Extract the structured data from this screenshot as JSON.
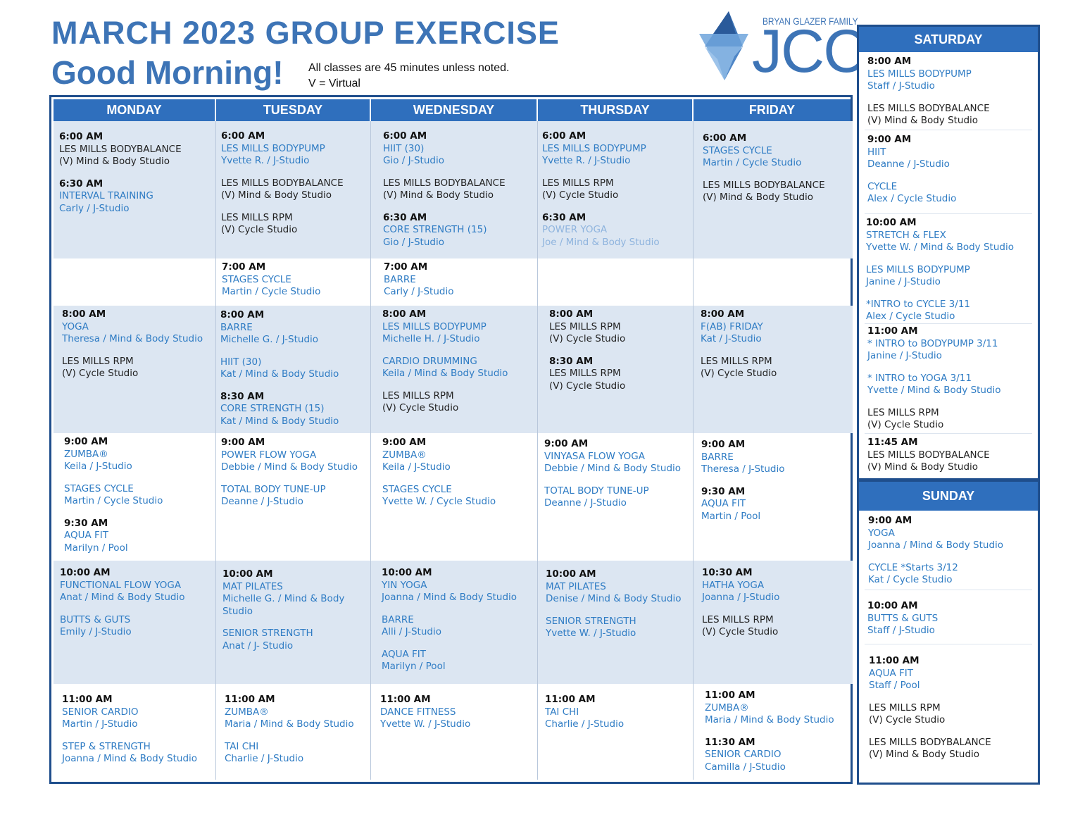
{
  "header": {
    "title": "MARCH  2023 GROUP  EXERCISE",
    "subtitle": "Good Morning!",
    "note_line1": "All classes are 45 minutes unless noted.",
    "note_line2": "V = Virtual"
  },
  "logo": {
    "family": "BRYAN GLAZER FAMILY",
    "name": "JCC"
  },
  "days": {
    "monday": "MONDAY",
    "tuesday": "TUESDAY",
    "wednesday": "WEDNESDAY",
    "thursday": "THURSDAY",
    "friday": "FRIDAY",
    "saturday": "SATURDAY",
    "sunday": "SUNDAY"
  },
  "monday": {
    "r1": [
      "6:00 AM",
      "LES MILLS BODYBALANCE",
      "(V) Mind & Body Studio",
      "6:30 AM",
      "INTERVAL TRAINING",
      "Carly / J-Studio"
    ],
    "r3": [
      "8:00 AM",
      "YOGA",
      "Theresa / Mind & Body Studio",
      "LES MILLS RPM",
      "(V)  Cycle Studio"
    ],
    "r4": [
      "9:00 AM",
      "ZUMBA®",
      "Keila / J-Studio",
      "STAGES CYCLE",
      "Martin / Cycle Studio",
      "9:30 AM",
      "AQUA FIT",
      "Marilyn / Pool"
    ],
    "r5": [
      "10:00 AM",
      "FUNCTIONAL  FLOW YOGA",
      "Anat / Mind & Body Studio",
      "BUTTS & GUTS",
      "Emily / J-Studio"
    ],
    "r6": [
      "11:00 AM",
      "SENIOR CARDIO",
      "Martin / J-Studio",
      "STEP & STRENGTH",
      "Joanna / Mind & Body Studio"
    ]
  },
  "tuesday": {
    "r1": [
      "6:00 AM",
      "LES MILLS BODYPUMP",
      "Yvette R. / J-Studio",
      "LES MILLS BODYBALANCE",
      "(V) Mind & Body Studio",
      "LES MILLS RPM",
      "(V) Cycle Studio"
    ],
    "r2": [
      "7:00 AM",
      "STAGES  CYCLE",
      "Martin / Cycle Studio"
    ],
    "r3": [
      "8:00 AM",
      "BARRE",
      "Michelle G. / J-Studio",
      "HIIT (30)",
      "Kat / Mind & Body Studio",
      "8:30 AM",
      "CORE STRENGTH (15)",
      "Kat / Mind & Body Studio"
    ],
    "r4": [
      "9:00 AM",
      "POWER FLOW YOGA",
      "Debbie / Mind & Body Studio",
      "TOTAL BODY TUNE-UP",
      "Deanne / J-Studio"
    ],
    "r5": [
      "10:00 AM",
      "MAT PILATES",
      "Michelle G. / Mind & Body",
      "Studio",
      "SENIOR STRENGTH",
      "Anat /  J- Studio"
    ],
    "r6": [
      "11:00 AM",
      "ZUMBA®",
      "Maria / Mind & Body Studio",
      "TAI CHI",
      "Charlie / J-Studio"
    ]
  },
  "wednesday": {
    "r1": [
      "6:00 AM",
      "HIIT (30)",
      "Gio / J-Studio",
      "LES MILLS BODYBALANCE",
      "(V) Mind & Body Studio",
      "6:30 AM",
      "CORE STRENGTH (15)",
      "Gio / J-Studio"
    ],
    "r2": [
      "7:00 AM",
      "BARRE",
      "Carly / J-Studio"
    ],
    "r3": [
      "8:00 AM",
      "LES MILLS BODYPUMP",
      "Michelle H. / J-Studio",
      "CARDIO DRUMMING",
      "Keila / Mind & Body Studio",
      "LES MILLS RPM",
      "(V) Cycle Studio"
    ],
    "r4": [
      "9:00 AM",
      "ZUMBA®",
      "Keila / J-Studio",
      "STAGES CYCLE",
      "Yvette W. / Cycle Studio"
    ],
    "r5": [
      "10:00 AM",
      "YIN YOGA",
      "Joanna / Mind & Body Studio",
      "BARRE",
      "Alli / J-Studio",
      "AQUA FIT",
      "Marilyn / Pool"
    ],
    "r6": [
      "11:00 AM",
      "DANCE FITNESS",
      "Yvette W. / J-Studio"
    ]
  },
  "thursday": {
    "r1": [
      "6:00 AM",
      "LES MILLS BODYPUMP",
      "Yvette R. / J-Studio",
      "LES MILLS RPM",
      "(V) Cycle Studio",
      "6:30 AM",
      "POWER YOGA",
      "Joe / Mind & Body Studio"
    ],
    "r3": [
      "8:00 AM",
      "LES MILLS RPM",
      "(V) Cycle Studio",
      "8:30 AM",
      "LES MILLS RPM",
      "(V) Cycle Studio"
    ],
    "r4": [
      "9:00 AM",
      "VINYASA  FLOW YOGA",
      "Debbie / Mind & Body Studio",
      "TOTAL  BODY TUNE-UP",
      "Deanne / J-Studio"
    ],
    "r5": [
      "10:00 AM",
      "MAT PILATES",
      "Denise / Mind & Body Studio",
      "SENIOR STRENGTH",
      "Yvette W. / J-Studio"
    ],
    "r6": [
      "11:00 AM",
      "TAI CHI",
      "Charlie / J-Studio"
    ]
  },
  "friday": {
    "r1": [
      "6:00 AM",
      "STAGES CYCLE",
      "Martin / Cycle Studio",
      "LES MILLS BODYBALANCE",
      "(V) Mind & Body Studio"
    ],
    "r3": [
      "8:00 AM",
      "F(AB) FRIDAY",
      "Kat / J-Studio",
      "LES MILLS RPM",
      "(V) Cycle Studio"
    ],
    "r4": [
      "9:00 AM",
      "BARRE",
      "Theresa / J-Studio",
      "9:30 AM",
      "AQUA FIT",
      "Martin / Pool"
    ],
    "r5": [
      "10:30 AM",
      "HATHA YOGA",
      "Joanna / J-Studio",
      "LES MILLS RPM",
      "(V) Cycle Studio"
    ],
    "r6": [
      "11:00 AM",
      "ZUMBA®",
      "Maria / Mind & Body Studio",
      "11:30 AM",
      "SENIOR CARDIO",
      "Camilla / J-Studio"
    ]
  },
  "saturday": {
    "s1": [
      "8:00 AM",
      "LES MILLS BODYPUMP",
      "Staff / J-Studio",
      "LES MILLS BODYBALANCE",
      "(V) Mind & Body Studio"
    ],
    "s2": [
      "9:00 AM",
      "HIIT",
      "Deanne / J-Studio",
      "CYCLE",
      "Alex / Cycle Studio"
    ],
    "s3": [
      "10:00 AM",
      "STRETCH  & FLEX",
      "Yvette W. / Mind & Body Studio",
      "LES MILLS BODYPUMP",
      "Janine / J-Studio",
      "*INTRO to CYCLE 3/11",
      "Alex / Cycle Studio"
    ],
    "s4": [
      "11:00 AM",
      "* INTRO to BODYPUMP 3/11",
      "Janine / J-Studio",
      "* INTRO to YOGA 3/11",
      "Yvette / Mind & Body Studio",
      "LES MILLS RPM",
      "(V) Cycle Studio"
    ],
    "s5": [
      "11:45 AM",
      "LES MILLS  BODYBALANCE",
      "(V) Mind & Body Studio"
    ]
  },
  "sunday": {
    "u1": [
      "9:00 AM",
      "YOGA",
      "Joanna / Mind & Body Studio",
      "CYCLE *Starts 3/12",
      "Kat / Cycle Studio"
    ],
    "u2": [
      "10:00 AM",
      "BUTTS & GUTS",
      "Staff / J-Studio"
    ],
    "u3": [
      "11:00 AM",
      "AQUA  FIT",
      "Staff / Pool",
      "LES MILLS RPM",
      "(V) Cycle Studio",
      "LES MILLS BODYBALANCE",
      "(V) Mind & Body Studio"
    ]
  },
  "colors": {
    "title": "#3d74b6",
    "header_bg": "#2f6fbd",
    "shade": "#dce6f2",
    "class_blue": "#2f7cc4",
    "border": "#1f4e8c"
  }
}
